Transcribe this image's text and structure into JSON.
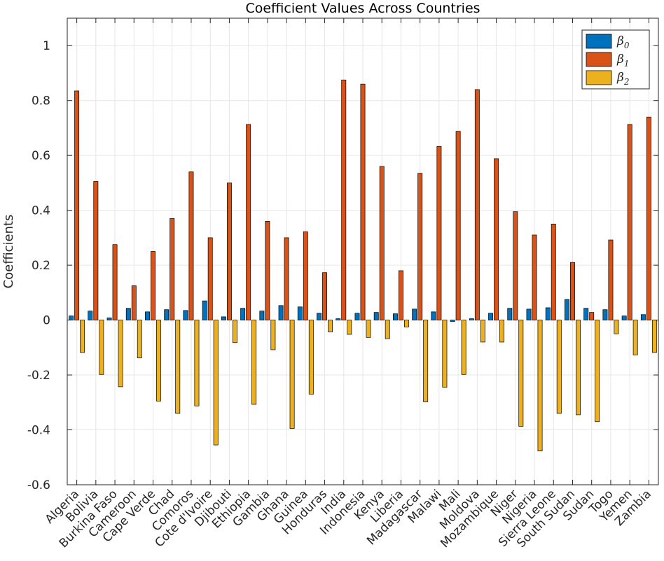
{
  "chart_data": {
    "type": "bar",
    "title": "Coefficient Values Across Countries",
    "xlabel": "",
    "ylabel": "Coefficients",
    "ylim": [
      -0.6,
      1.1
    ],
    "yticks": [
      -0.6,
      -0.4,
      -0.2,
      0,
      0.2,
      0.4,
      0.6,
      0.8,
      1
    ],
    "ytick_labels": [
      "-0.6",
      "-0.4",
      "-0.2",
      "0",
      "0.2",
      "0.4",
      "0.6",
      "0.8",
      "1"
    ],
    "grid": true,
    "legend_position": "top-right",
    "categories": [
      "Algeria",
      "Bolivia",
      "Burkina Faso",
      "Cameroon",
      "Cape Verde",
      "Chad",
      "Comoros",
      "Cote d'Ivoire",
      "Djibouti",
      "Ethiopia",
      "Gambia",
      "Ghana",
      "Guinea",
      "Honduras",
      "India",
      "Indonesia",
      "Kenya",
      "Liberia",
      "Madagascar",
      "Malawi",
      "Mali",
      "Moldova",
      "Mozambique",
      "Niger",
      "Nigeria",
      "Sierra Leone",
      "South Sudan",
      "Sudan",
      "Togo",
      "Yemen",
      "Zambia"
    ],
    "series": [
      {
        "name": "β0",
        "label_base": "β",
        "label_sub": "0",
        "color": "#0072BD",
        "values": [
          0.015,
          0.033,
          0.008,
          0.043,
          0.03,
          0.038,
          0.035,
          0.07,
          0.012,
          0.043,
          0.033,
          0.053,
          0.048,
          0.025,
          0.005,
          0.025,
          0.028,
          0.023,
          0.04,
          0.03,
          -0.005,
          0.005,
          0.025,
          0.043,
          0.04,
          0.045,
          0.075,
          0.043,
          0.038,
          0.015,
          0.02
        ]
      },
      {
        "name": "β1",
        "label_base": "β",
        "label_sub": "1",
        "color": "#D95319",
        "values": [
          0.835,
          0.505,
          0.275,
          0.125,
          0.25,
          0.37,
          0.54,
          0.3,
          0.5,
          0.713,
          0.36,
          0.3,
          0.322,
          0.173,
          0.875,
          0.86,
          0.56,
          0.18,
          0.535,
          0.633,
          0.688,
          0.84,
          0.588,
          0.395,
          0.31,
          0.35,
          0.21,
          0.028,
          0.292,
          0.713,
          0.74
        ]
      },
      {
        "name": "β2",
        "label_base": "β",
        "label_sub": "2",
        "color": "#EDB120",
        "values": [
          -0.118,
          -0.198,
          -0.243,
          -0.138,
          -0.295,
          -0.34,
          -0.313,
          -0.455,
          -0.082,
          -0.307,
          -0.108,
          -0.395,
          -0.27,
          -0.043,
          -0.052,
          -0.063,
          -0.068,
          -0.025,
          -0.298,
          -0.245,
          -0.198,
          -0.08,
          -0.08,
          -0.387,
          -0.477,
          -0.34,
          -0.345,
          -0.37,
          -0.05,
          -0.127,
          -0.118
        ]
      }
    ]
  }
}
